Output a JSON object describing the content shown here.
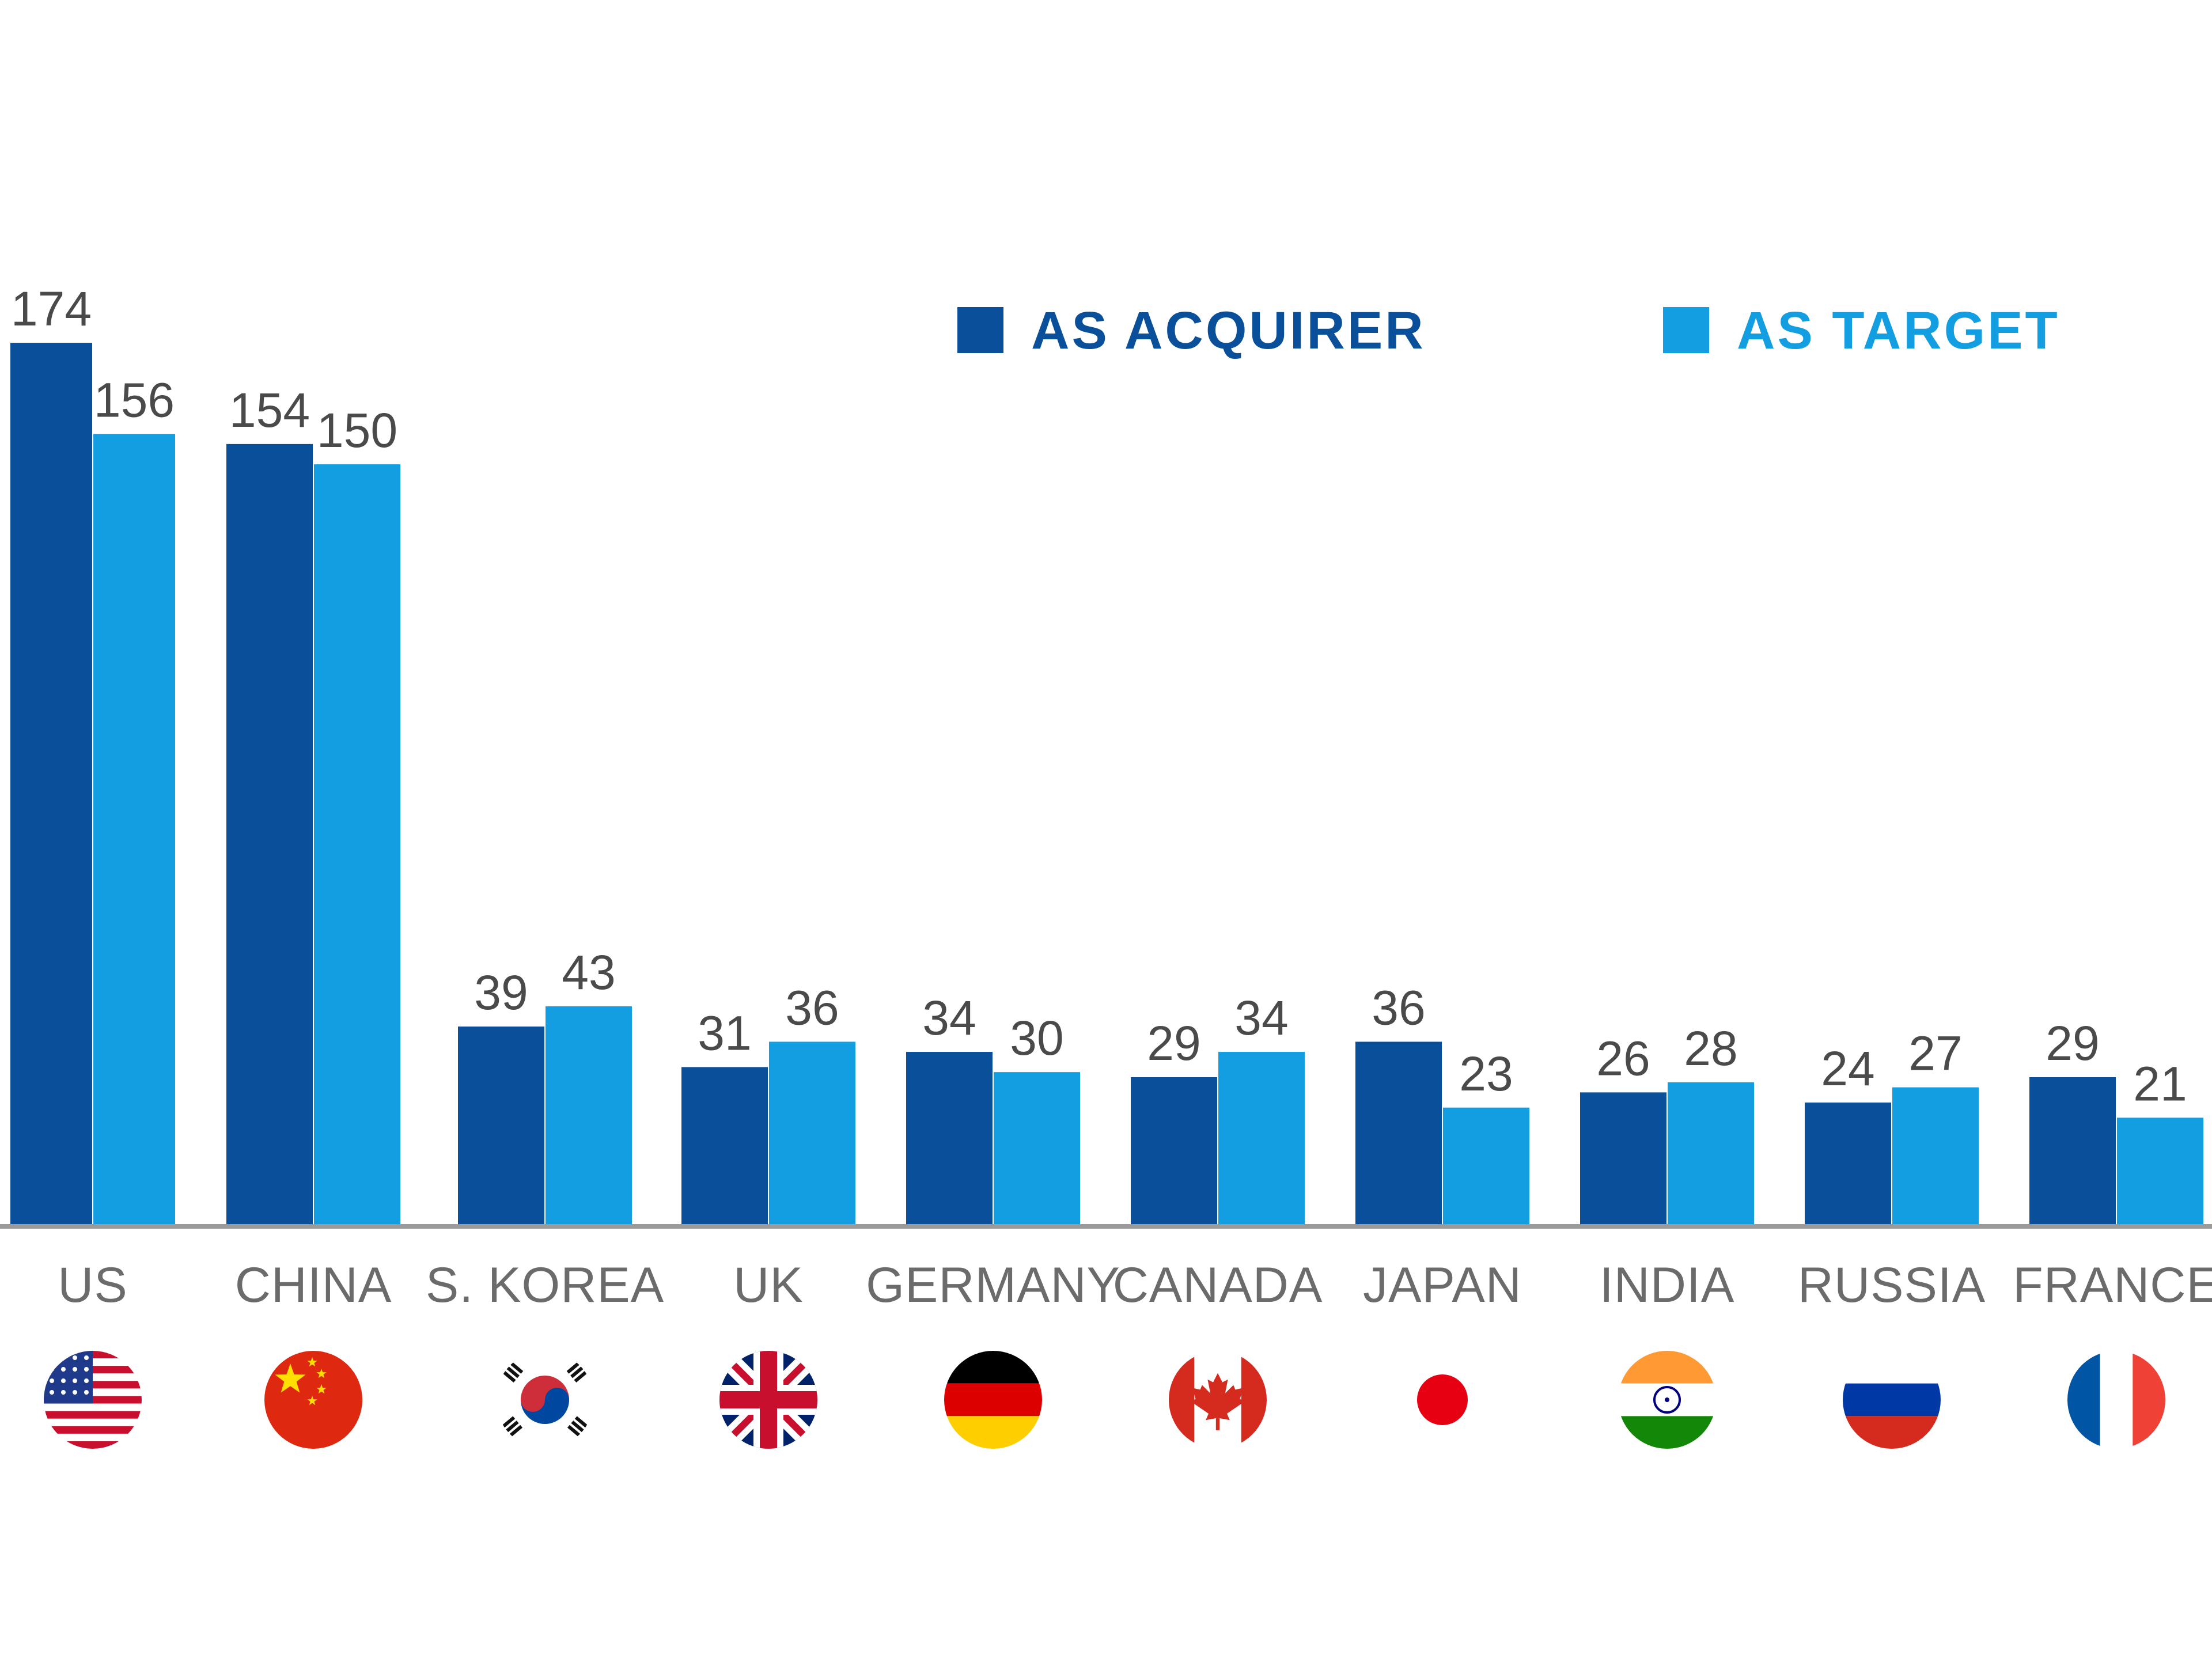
{
  "chart_data": {
    "type": "bar",
    "title": "",
    "xlabel": "",
    "ylabel": "",
    "ylim": [
      0,
      180
    ],
    "grid": false,
    "legend": "top-right",
    "categories": [
      "US",
      "CHINA",
      "S. KOREA",
      "UK",
      "GERMANY",
      "CANADA",
      "JAPAN",
      "INDIA",
      "RUSSIA",
      "FRANCE"
    ],
    "series": [
      {
        "name": "AS ACQUIRER",
        "color": "#0a4f9a",
        "values": [
          174,
          154,
          39,
          31,
          34,
          29,
          36,
          26,
          24,
          29
        ]
      },
      {
        "name": "AS TARGET",
        "color": "#129ee0",
        "values": [
          156,
          150,
          43,
          36,
          30,
          34,
          23,
          28,
          27,
          21
        ]
      }
    ]
  },
  "flags": [
    {
      "country": "US",
      "icon": "us-flag-icon"
    },
    {
      "country": "CHINA",
      "icon": "china-flag-icon"
    },
    {
      "country": "S. KOREA",
      "icon": "south-korea-flag-icon"
    },
    {
      "country": "UK",
      "icon": "uk-flag-icon"
    },
    {
      "country": "GERMANY",
      "icon": "germany-flag-icon"
    },
    {
      "country": "CANADA",
      "icon": "canada-flag-icon"
    },
    {
      "country": "JAPAN",
      "icon": "japan-flag-icon"
    },
    {
      "country": "INDIA",
      "icon": "india-flag-icon"
    },
    {
      "country": "RUSSIA",
      "icon": "russia-flag-icon"
    },
    {
      "country": "FRANCE",
      "icon": "france-flag-icon"
    }
  ],
  "colors": {
    "axis": "#9a9a9a",
    "label": "#6b6b6b",
    "value_label": "#4a4a4a"
  }
}
